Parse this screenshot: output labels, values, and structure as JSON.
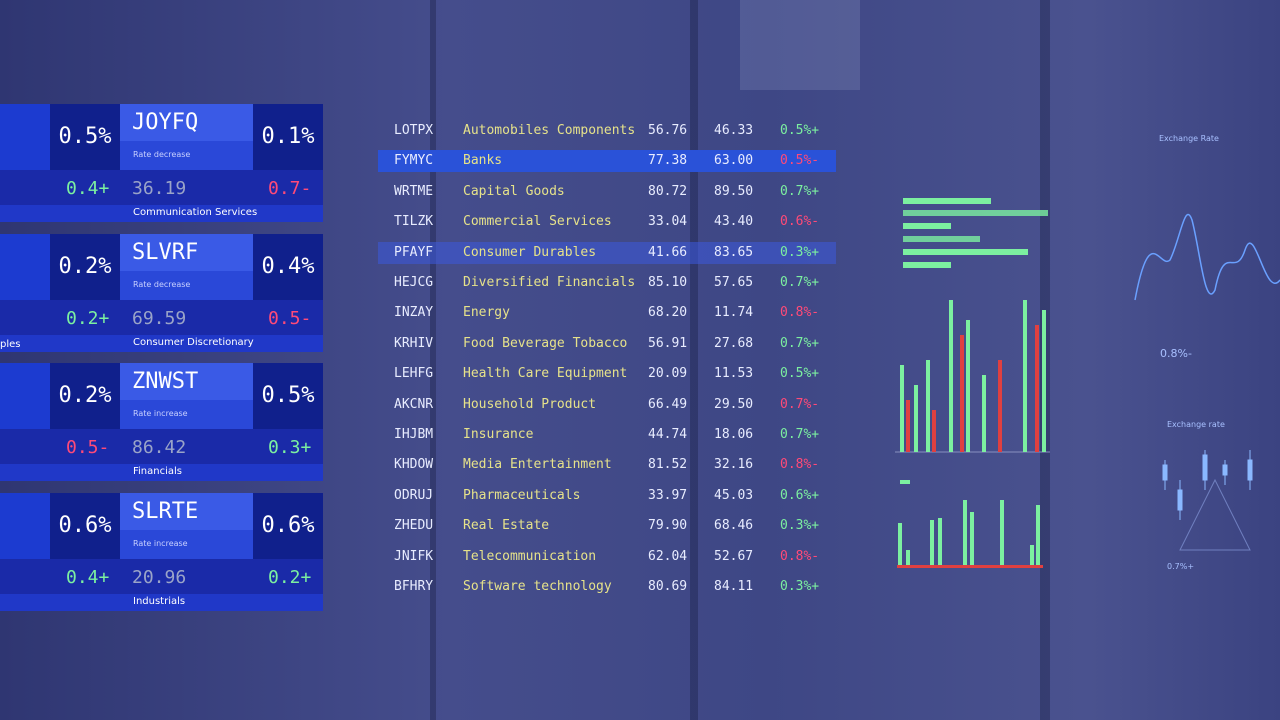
{
  "cards": [
    {
      "ticker": "JOYFQ",
      "left_pct": "0.5%",
      "right_pct": "0.1%",
      "note": "Rate decrease",
      "left_change": "0.4+",
      "value": "36.19",
      "right_change": "0.7-",
      "sector": "Communication Services"
    },
    {
      "ticker": "SLVRF",
      "left_pct": "0.2%",
      "right_pct": "0.4%",
      "note": "Rate decrease",
      "left_change": "0.2+",
      "value": "69.59",
      "right_change": "0.5-",
      "sector": "Consumer Discretionary"
    },
    {
      "ticker": "ZNWST",
      "left_pct": "0.2%",
      "right_pct": "0.5%",
      "note": "Rate increase",
      "left_change": "0.5-",
      "value": "86.42",
      "right_change": "0.3+",
      "sector": "Financials"
    },
    {
      "ticker": "SLRTE",
      "left_pct": "0.6%",
      "right_pct": "0.6%",
      "note": "Rate increase",
      "left_change": "0.4+",
      "value": "20.96",
      "right_change": "0.2+",
      "sector": "Industrials"
    }
  ],
  "cut_label": "ples",
  "table": {
    "rows": [
      [
        "LOTPX",
        "Automobiles Components",
        "56.76",
        "46.33",
        "0.5%+"
      ],
      [
        "FYMYC",
        "Banks",
        "77.38",
        "63.00",
        "0.5%-"
      ],
      [
        "WRTME",
        "Capital Goods",
        "80.72",
        "89.50",
        "0.7%+"
      ],
      [
        "TILZK",
        "Commercial Services",
        "33.04",
        "43.40",
        "0.6%-"
      ],
      [
        "PFAYF",
        "Consumer Durables",
        "41.66",
        "83.65",
        "0.3%+"
      ],
      [
        "HEJCG",
        "Diversified Financials",
        "85.10",
        "57.65",
        "0.7%+"
      ],
      [
        "INZAY",
        "Energy",
        "68.20",
        "11.74",
        "0.8%-"
      ],
      [
        "KRHIV",
        "Food Beverage Tobacco",
        "56.91",
        "27.68",
        "0.7%+"
      ],
      [
        "LEHFG",
        "Health Care Equipment",
        "20.09",
        "11.53",
        "0.5%+"
      ],
      [
        "AKCNR",
        "Household Product",
        "66.49",
        "29.50",
        "0.7%-"
      ],
      [
        "IHJBM",
        "Insurance",
        "44.74",
        "18.06",
        "0.7%+"
      ],
      [
        "KHDOW",
        "Media Entertainment",
        "81.52",
        "32.16",
        "0.8%-"
      ],
      [
        "ODRUJ",
        "Pharmaceuticals",
        "33.97",
        "45.03",
        "0.6%+"
      ],
      [
        "ZHEDU",
        "Real Estate",
        "79.90",
        "68.46",
        "0.3%+"
      ],
      [
        "JNIFK",
        "Telecommunication",
        "62.04",
        "52.67",
        "0.8%-"
      ],
      [
        "BFHRY",
        "Software technology",
        "80.69",
        "84.11",
        "0.3%+"
      ]
    ]
  },
  "widgets": {
    "exchange_title": "Exchange Rate",
    "exchange_change": "0.8%-",
    "candles_title": "Exchange rate",
    "candles_change": "0.7%+"
  }
}
